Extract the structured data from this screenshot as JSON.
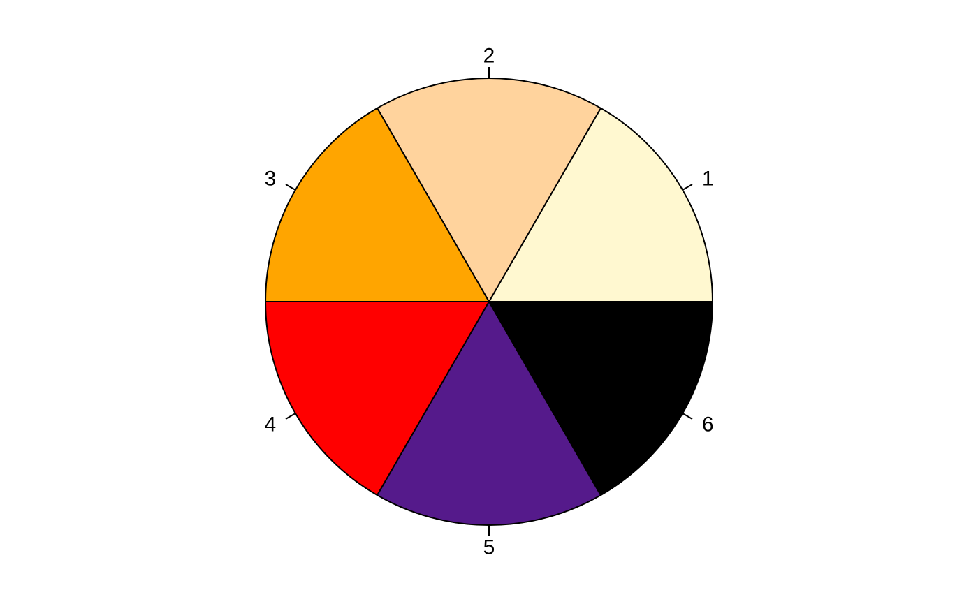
{
  "chart_data": {
    "type": "pie",
    "labels": [
      "1",
      "2",
      "3",
      "4",
      "5",
      "6"
    ],
    "values": [
      1,
      1,
      1,
      1,
      1,
      1
    ],
    "colors": [
      "#FFF8D0",
      "#FFD39D",
      "#FFA500",
      "#FF0000",
      "#551A8B",
      "#000000"
    ],
    "start_angle_deg": 0,
    "direction": "counterclockwise",
    "title": "",
    "legend": "none"
  }
}
